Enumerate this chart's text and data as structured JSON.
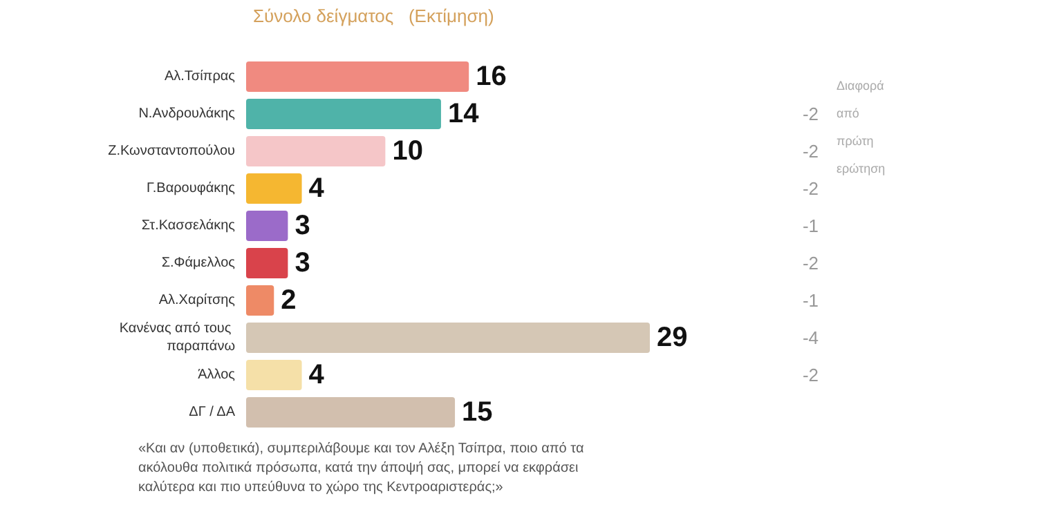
{
  "chart_data": {
    "type": "bar",
    "orientation": "horizontal",
    "title": "Σύνολο δείγματος   (Εκτίμηση)",
    "categories": [
      "Αλ.Τσίπρας",
      "Ν.Ανδρουλάκης",
      "Ζ.Κωνσταντοπούλου",
      "Γ.Βαρουφάκης",
      "Στ.Κασσελάκης",
      "Σ.Φάμελλος",
      "Αλ.Χαρίτσης",
      "Κανένας από τους παραπάνω",
      "Άλλος",
      "ΔΓ / ΔΑ"
    ],
    "values": [
      16,
      14,
      10,
      4,
      3,
      3,
      2,
      29,
      4,
      15
    ],
    "colors": [
      "#f08a80",
      "#4fb3a9",
      "#f5c6c8",
      "#f5b731",
      "#9b6bc9",
      "#d9434b",
      "#ee8a66",
      "#d5c7b5",
      "#f5e0a8",
      "#d2bfae"
    ],
    "data_labels": true,
    "annotations": [
      "Διαφορά από πρώτη ερώτηση",
      "-2",
      "-2",
      "-2",
      "-1",
      "-2",
      "-1",
      "-4",
      "-2",
      "«Και αν (υποθετικά), συμπεριλάβουμε και τον Αλέξη Τσίπρα, ποιο από τα ακόλουθα πολιτικά πρόσωπα, κατά την άποψή σας, μπορεί να εκφράσει καλύτερα και πιο υπεύθυνα το χώρο της Κεντροαριστεράς;»"
    ]
  }
}
